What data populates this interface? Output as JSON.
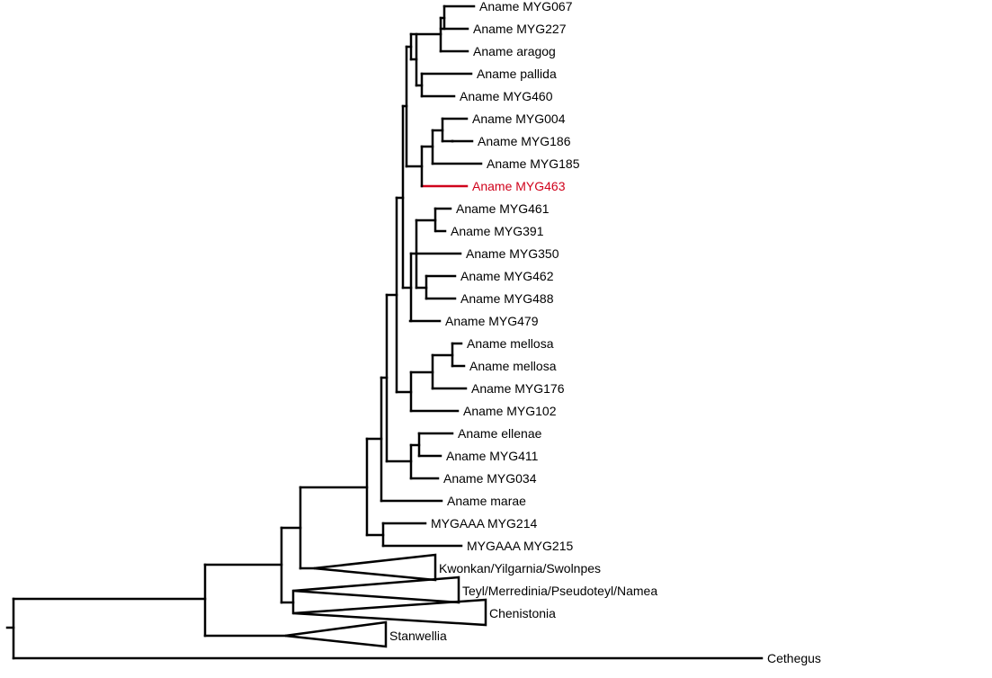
{
  "tree": {
    "highlight_color": "#d0021b",
    "line_color": "#000000",
    "highlighted_taxon": "Aname MYG463",
    "taxa": [
      "Aname MYG067",
      "Aname MYG227",
      "Aname aragog",
      "Aname pallida",
      "Aname MYG460",
      "Aname MYG004",
      "Aname MYG186",
      "Aname MYG185",
      "Aname MYG463",
      "Aname MYG461",
      "Aname MYG391",
      "Aname MYG350",
      "Aname MYG462",
      "Aname MYG488",
      "Aname MYG479",
      "Aname mellosa",
      "Aname mellosa",
      "Aname MYG176",
      "Aname MYG102",
      "Aname ellenae",
      "Aname MYG411",
      "Aname MYG034",
      "Aname marae",
      "MYGAAA MYG214",
      "MYGAAA MYG215"
    ],
    "collapsed_clades": [
      "Kwonkan/Yilgarnia/Swolnpes",
      "Teyl/Merredinia/Pseudoteyl/Namea",
      "Chenistonia",
      "Stanwellia"
    ],
    "outgroup": "Cethegus"
  }
}
